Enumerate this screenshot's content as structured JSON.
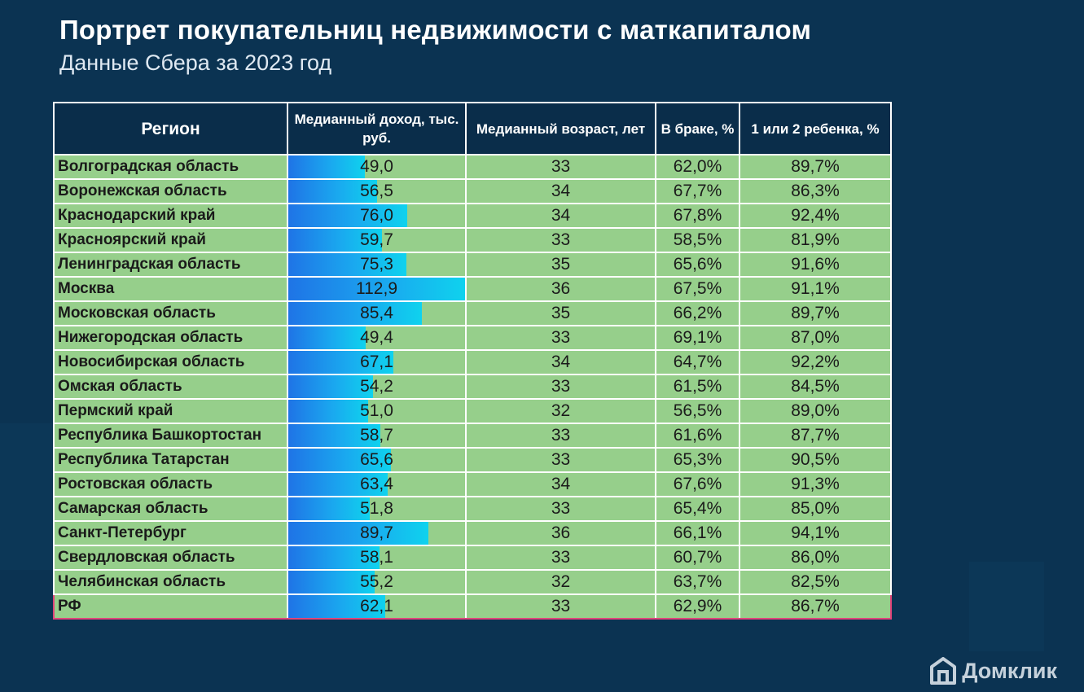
{
  "header": {
    "title": "Портрет покупательниц недвижимости с маткапиталом",
    "subtitle": "Данные Сбера за 2023 год"
  },
  "logo": {
    "text": "Домклик",
    "icon": "house-icon"
  },
  "colors": {
    "background": "#0b3352",
    "header_bg": "#0a2d4a",
    "cell_bg": "#96cf8b",
    "bar_start": "#1f74e6",
    "bar_end": "#0fd2ee",
    "total_row_outline": "#e0457a"
  },
  "chart_data": {
    "type": "table",
    "columns": [
      "Регион",
      "Медианный доход, тыс. руб.",
      "Медианный возраст, лет",
      "В браке, %",
      "1 или 2 ребенка, %"
    ],
    "rows": [
      {
        "region": "Волгоградская область",
        "income": 49.0,
        "income_label": "49,0",
        "age": "33",
        "married": "62,0%",
        "children": "89,7%"
      },
      {
        "region": "Воронежская область",
        "income": 56.5,
        "income_label": "56,5",
        "age": "34",
        "married": "67,7%",
        "children": "86,3%"
      },
      {
        "region": "Краснодарский край",
        "income": 76.0,
        "income_label": "76,0",
        "age": "34",
        "married": "67,8%",
        "children": "92,4%"
      },
      {
        "region": "Красноярский край",
        "income": 59.7,
        "income_label": "59,7",
        "age": "33",
        "married": "58,5%",
        "children": "81,9%"
      },
      {
        "region": "Ленинградская область",
        "income": 75.3,
        "income_label": "75,3",
        "age": "35",
        "married": "65,6%",
        "children": "91,6%"
      },
      {
        "region": "Москва",
        "income": 112.9,
        "income_label": "112,9",
        "age": "36",
        "married": "67,5%",
        "children": "91,1%"
      },
      {
        "region": "Московская область",
        "income": 85.4,
        "income_label": "85,4",
        "age": "35",
        "married": "66,2%",
        "children": "89,7%"
      },
      {
        "region": "Нижегородская область",
        "income": 49.4,
        "income_label": "49,4",
        "age": "33",
        "married": "69,1%",
        "children": "87,0%"
      },
      {
        "region": "Новосибирская область",
        "income": 67.1,
        "income_label": "67,1",
        "age": "34",
        "married": "64,7%",
        "children": "92,2%"
      },
      {
        "region": "Омская область",
        "income": 54.2,
        "income_label": "54,2",
        "age": "33",
        "married": "61,5%",
        "children": "84,5%"
      },
      {
        "region": "Пермский край",
        "income": 51.0,
        "income_label": "51,0",
        "age": "32",
        "married": "56,5%",
        "children": "89,0%"
      },
      {
        "region": "Республика Башкортостан",
        "income": 58.7,
        "income_label": "58,7",
        "age": "33",
        "married": "61,6%",
        "children": "87,7%"
      },
      {
        "region": "Республика Татарстан",
        "income": 65.6,
        "income_label": "65,6",
        "age": "33",
        "married": "65,3%",
        "children": "90,5%"
      },
      {
        "region": "Ростовская область",
        "income": 63.4,
        "income_label": "63,4",
        "age": "34",
        "married": "67,6%",
        "children": "91,3%"
      },
      {
        "region": "Самарская область",
        "income": 51.8,
        "income_label": "51,8",
        "age": "33",
        "married": "65,4%",
        "children": "85,0%"
      },
      {
        "region": "Санкт-Петербург",
        "income": 89.7,
        "income_label": "89,7",
        "age": "36",
        "married": "66,1%",
        "children": "94,1%"
      },
      {
        "region": "Свердловская область",
        "income": 58.1,
        "income_label": "58,1",
        "age": "33",
        "married": "60,7%",
        "children": "86,0%"
      },
      {
        "region": "Челябинская область",
        "income": 55.2,
        "income_label": "55,2",
        "age": "32",
        "married": "63,7%",
        "children": "82,5%"
      },
      {
        "region": "РФ",
        "income": 62.1,
        "income_label": "62,1",
        "age": "33",
        "married": "62,9%",
        "children": "86,7%",
        "highlight": true
      }
    ],
    "income_bar_max": 112.9
  }
}
